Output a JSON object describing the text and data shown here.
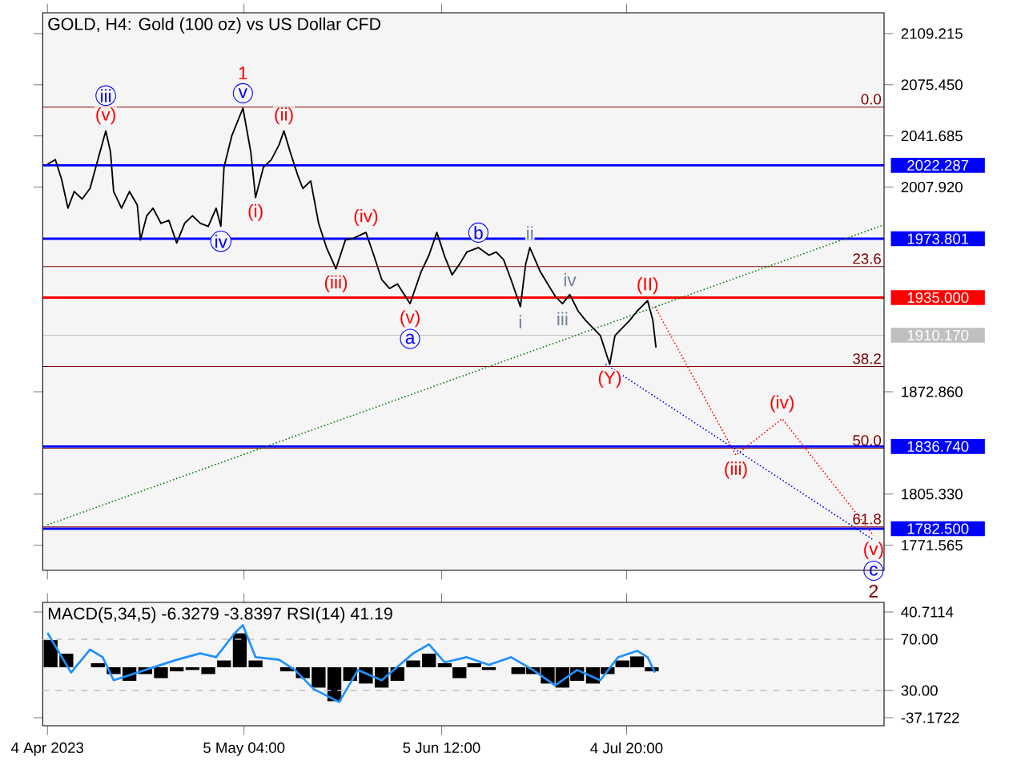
{
  "chart_data": [
    {
      "type": "line",
      "title": "GOLD, H4:  Gold (100 oz) vs US Dollar CFD",
      "xlim": [
        "2023-04-03T06:00",
        "2023-08-14T16:00"
      ],
      "ylim": [
        1755,
        2122.9
      ],
      "xticks": [
        {
          "value": "2023-04-04T00:00",
          "label": null
        },
        {
          "value": "2023-05-05T04:00",
          "label": null
        },
        {
          "value": "2023-06-05T12:00",
          "label": null
        },
        {
          "value": "2023-07-04T20:00",
          "label": null
        }
      ],
      "yticks": [
        {
          "value": 2109.215,
          "label": "2109.215"
        },
        {
          "value": 2075.45,
          "label": "2075.450"
        },
        {
          "value": 2041.685,
          "label": "2041.685"
        },
        {
          "value": 2007.92,
          "label": "2007.920"
        },
        {
          "value": 1872.86,
          "label": "1872.860"
        },
        {
          "value": 1805.33,
          "label": "1805.330"
        },
        {
          "value": 1771.565,
          "label": "1771.565"
        }
      ],
      "tick_labels": "y",
      "marker": "none",
      "series": [
        {
          "color": "#000000",
          "line_style": "solid",
          "x": [
            "2023-04-04T00:00",
            "2023-04-05T06:00",
            "2023-04-06T06:00",
            "2023-04-07T06:00",
            "2023-04-08T06:00",
            "2023-04-09T12:00",
            "2023-04-10T18:00",
            "2023-04-12T00:00",
            "2023-04-13T06:00",
            "2023-04-14T00:00",
            "2023-04-14T12:00",
            "2023-04-15T18:00",
            "2023-04-17T00:00",
            "2023-04-18T06:00",
            "2023-04-18T18:00",
            "2023-04-19T18:00",
            "2023-04-20T18:00",
            "2023-04-22T00:00",
            "2023-04-23T06:00",
            "2023-04-24T12:00",
            "2023-04-25T18:00",
            "2023-04-27T00:00",
            "2023-04-28T06:00",
            "2023-04-29T12:00",
            "2023-04-30T18:00",
            "2023-05-01T12:00",
            "2023-05-02T00:00",
            "2023-05-03T06:00",
            "2023-05-05T00:00",
            "2023-05-06T06:00",
            "2023-05-07T00:00",
            "2023-05-08T06:00",
            "2023-05-09T12:00",
            "2023-05-10T18:00",
            "2023-05-11T12:00",
            "2023-05-12T12:00",
            "2023-05-13T18:00",
            "2023-05-14T12:00",
            "2023-05-15T18:00",
            "2023-05-17T00:00",
            "2023-05-18T06:00",
            "2023-05-19T18:00",
            "2023-05-21T06:00",
            "2023-05-22T12:00",
            "2023-05-24T12:00",
            "2023-05-25T18:00",
            "2023-05-27T00:00",
            "2023-05-28T06:00",
            "2023-05-29T12:00",
            "2023-05-31T12:00",
            "2023-06-02T06:00",
            "2023-06-03T12:00",
            "2023-06-04T18:00",
            "2023-06-06T00:00",
            "2023-06-07T04:00",
            "2023-06-08T08:00",
            "2023-06-09T12:00",
            "2023-06-11T08:00",
            "2023-06-13T00:00",
            "2023-06-14T04:00",
            "2023-06-15T08:00",
            "2023-06-16T12:00",
            "2023-06-18T00:00",
            "2023-06-18T20:00",
            "2023-06-19T12:00",
            "2023-06-21T04:00",
            "2023-06-22T08:00",
            "2023-06-23T12:00",
            "2023-06-24T16:00",
            "2023-06-25T20:00",
            "2023-06-27T04:00",
            "2023-06-28T08:00",
            "2023-06-29T12:00",
            "2023-06-30T16:00",
            "2023-07-02T04:00",
            "2023-07-03T00:00",
            "2023-07-04T04:00",
            "2023-07-05T08:00",
            "2023-07-06T12:00",
            "2023-07-08T04:00",
            "2023-07-09T00:00",
            "2023-07-09T12:00"
          ],
          "values": [
            2023,
            2026,
            2013,
            1994,
            2005,
            2000,
            2007,
            2026,
            2045,
            2031,
            2005,
            1994,
            2005,
            1996,
            1973,
            1989,
            1994,
            1984,
            1986,
            1971,
            1984,
            1989,
            1984,
            1982,
            1994,
            1982,
            2021,
            2042,
            2060,
            2031,
            2001,
            2021,
            2026,
            2036,
            2045,
            2031,
            2015,
            2007,
            2012,
            1984,
            1968,
            1954,
            1973,
            1974,
            1978,
            1963,
            1947,
            1941,
            1944,
            1931,
            1952,
            1963,
            1978,
            1962,
            1950,
            1957,
            1965,
            1968,
            1963,
            1965,
            1960,
            1947,
            1929,
            1957,
            1968,
            1952,
            1944,
            1936,
            1931,
            1937,
            1926,
            1920,
            1915,
            1910,
            1891,
            1910,
            1915,
            1920,
            1926,
            1933,
            1920,
            1902
          ]
        },
        {
          "type": "line",
          "color": "#008000",
          "line_style": "dotted",
          "x": [
            "2023-04-04T00:00",
            "2023-08-14T16:00"
          ],
          "values": [
            1785,
            1983
          ]
        },
        {
          "type": "line",
          "color": "#ff0000",
          "line_style": "dotted",
          "x": [
            "2023-07-09T08:00",
            "2023-07-22T04:00",
            "2023-07-29T12:00",
            "2023-08-13T00:00"
          ],
          "values": [
            1929,
            1831,
            1855,
            1778
          ]
        },
        {
          "type": "line",
          "color": "#0000ff",
          "line_style": "dotted",
          "x": [
            "2023-07-01T12:00",
            "2023-08-13T00:00"
          ],
          "values": [
            1891,
            1775
          ]
        }
      ],
      "ref_lines": [
        {
          "axis": "y",
          "value": 2060.7,
          "color": "#800000"
        },
        {
          "axis": "y",
          "value": 1955.5,
          "color": "#800000"
        },
        {
          "axis": "y",
          "value": 1889.5,
          "color": "#800000"
        },
        {
          "axis": "y",
          "value": 1835.6,
          "color": "#800000"
        },
        {
          "axis": "y",
          "value": 1783.7,
          "color": "#800000"
        },
        {
          "axis": "y",
          "value": 2022.287,
          "label": "2022.287",
          "color": "#0000ff"
        },
        {
          "axis": "y",
          "value": 1973.801,
          "label": "1973.801",
          "color": "#0000ff"
        },
        {
          "axis": "y",
          "value": 1935.0,
          "label": "1935.000",
          "color": "#ff0000"
        },
        {
          "axis": "y",
          "value": 1910.17,
          "label": "1910.170",
          "color": "#c0c0c0"
        },
        {
          "axis": "y",
          "value": 1836.74,
          "label": "1836.740",
          "color": "#0000ff"
        },
        {
          "axis": "y",
          "value": 1782.5,
          "label": "1782.500",
          "color": "#0000ff"
        }
      ],
      "annotations": [
        "0.0",
        "23.6",
        "38.2",
        "50.0",
        "61.8",
        {
          "text": "v",
          "x": "2023-05-05T00:00",
          "y": 2060
        },
        {
          "text": "1",
          "x": "2023-05-05T00:00",
          "y": 2060
        },
        {
          "text": "(v)",
          "x": "2023-04-13T06:00",
          "y": 2045
        },
        {
          "text": "iii",
          "x": "2023-04-13T06:00",
          "y": 2045
        },
        {
          "text": "(ii)",
          "x": "2023-05-11T12:00",
          "y": 2045
        },
        {
          "text": "(i)",
          "x": "2023-05-07T00:00",
          "y": 2001
        },
        {
          "text": "iv",
          "x": "2023-05-01T12:00",
          "y": 1982
        },
        {
          "text": "(iv)",
          "x": "2023-05-24T12:00",
          "y": 1978
        },
        {
          "text": "(iii)",
          "x": "2023-05-19T18:00",
          "y": 1954
        },
        {
          "text": "(v)",
          "x": "2023-05-31T12:00",
          "y": 1931
        },
        {
          "text": "a",
          "x": "2023-05-31T12:00",
          "y": 1931
        },
        {
          "text": "b",
          "x": "2023-06-11T08:00",
          "y": 1968
        },
        {
          "text": "ii",
          "x": "2023-06-19T12:00",
          "y": 1968
        },
        {
          "text": "iv",
          "x": "2023-06-25T20:00",
          "y": 1937
        },
        {
          "text": "i",
          "x": "2023-06-18T00:00",
          "y": 1929
        },
        {
          "text": "iii",
          "x": "2023-06-24T16:00",
          "y": 1931
        },
        {
          "text": "(Y)",
          "x": "2023-07-02T04:00",
          "y": 1891
        },
        {
          "text": "(II)",
          "x": "2023-07-08T04:00",
          "y": 1933
        },
        {
          "text": "(iii)",
          "x": "2023-07-22T04:00",
          "y": 1831
        },
        {
          "text": "(iv)",
          "x": "2023-07-29T12:00",
          "y": 1855
        },
        {
          "text": "(v)",
          "x": "2023-08-13T00:00",
          "y": 1778
        },
        {
          "text": "c",
          "x": "2023-08-13T00:00",
          "y": 1778
        },
        {
          "text": "2",
          "x": "2023-08-13T00:00",
          "y": 1778
        }
      ]
    },
    {
      "type": "bar",
      "title": "MACD(5,34,5) -6.3279 -3.8397 RSI(14) 41.19",
      "xlim": [
        "2023-04-03T06:00",
        "2023-08-14T16:00"
      ],
      "ylim": [
        -43.1,
        47.8
      ],
      "y2lim": [
        2.5,
        98.75
      ],
      "xticks": [
        {
          "value": "2023-04-04T00:00",
          "label": "4 Apr 2023"
        },
        {
          "value": "2023-05-05T04:00",
          "label": "5 May 04:00"
        },
        {
          "value": "2023-06-05T12:00",
          "label": "5 Jun 12:00"
        },
        {
          "value": "2023-07-04T20:00",
          "label": "4 Jul 20:00"
        }
      ],
      "yticks": [
        {
          "value": 40.7114,
          "label": "40.7114"
        },
        {
          "value": -37.1722,
          "label": "-37.1722"
        }
      ],
      "y2ticks": [
        {
          "value": 70,
          "label": "70.00"
        },
        {
          "value": 30,
          "label": "30.00"
        }
      ],
      "series": [
        {
          "type": "bar",
          "color": "#000000",
          "x": [
            "2023-04-04T12:00",
            "2023-04-07T00:00",
            "2023-04-09T12:00",
            "2023-04-12T00:00",
            "2023-04-14T12:00",
            "2023-04-17T00:00",
            "2023-04-19T12:00",
            "2023-04-22T00:00",
            "2023-04-24T12:00",
            "2023-04-27T00:00",
            "2023-04-29T12:00",
            "2023-05-02T00:00",
            "2023-05-04T12:00",
            "2023-05-07T00:00",
            "2023-05-09T12:00",
            "2023-05-12T00:00",
            "2023-05-14T12:00",
            "2023-05-17T00:00",
            "2023-05-19T12:00",
            "2023-05-22T00:00",
            "2023-05-24T12:00",
            "2023-05-27T00:00",
            "2023-05-29T12:00",
            "2023-06-01T00:00",
            "2023-06-03T12:00",
            "2023-06-06T00:00",
            "2023-06-08T08:00",
            "2023-06-10T16:00",
            "2023-06-13T00:00",
            "2023-06-15T08:00",
            "2023-06-17T16:00",
            "2023-06-20T00:00",
            "2023-06-22T08:00",
            "2023-06-24T16:00",
            "2023-06-27T00:00",
            "2023-06-29T12:00",
            "2023-07-01T20:00",
            "2023-07-04T04:00",
            "2023-07-06T12:00",
            "2023-07-08T20:00"
          ],
          "values": [
            20,
            10,
            0,
            3,
            -5,
            -10,
            -5,
            -8,
            -3,
            -2,
            -5,
            5,
            25,
            5,
            0,
            -3,
            -8,
            -15,
            -25,
            -10,
            -12,
            -15,
            -10,
            5,
            10,
            3,
            -8,
            3,
            -2,
            0,
            -5,
            -5,
            -12,
            -15,
            -10,
            -12,
            -5,
            5,
            8,
            -3
          ]
        },
        {
          "type": "line",
          "axis": "y2",
          "color": "#1e90ff",
          "line_style": "solid",
          "x": [
            "2023-04-04T00:00",
            "2023-04-07T18:00",
            "2023-04-10T18:00",
            "2023-04-12T18:00",
            "2023-04-14T12:00",
            "2023-04-18T06:00",
            "2023-04-24T12:00",
            "2023-04-28T06:00",
            "2023-04-30T18:00",
            "2023-05-03T18:00",
            "2023-05-05T00:00",
            "2023-05-07T00:00",
            "2023-05-10T18:00",
            "2023-05-13T06:00",
            "2023-05-16T06:00",
            "2023-05-20T06:00",
            "2023-05-23T06:00",
            "2023-05-27T00:00",
            "2023-06-01T00:00",
            "2023-06-03T12:00",
            "2023-06-06T00:00",
            "2023-06-09T12:00",
            "2023-06-13T00:00",
            "2023-06-16T12:00",
            "2023-06-20T00:00",
            "2023-06-23T12:00",
            "2023-06-27T00:00",
            "2023-06-30T16:00",
            "2023-07-03T12:00",
            "2023-07-06T12:00",
            "2023-07-08T04:00",
            "2023-07-09T08:00"
          ],
          "values": [
            75,
            44,
            62,
            56,
            38,
            44,
            54,
            59,
            56,
            75,
            81,
            56,
            54,
            46,
            31,
            21,
            46,
            38,
            59,
            66,
            52,
            56,
            50,
            56,
            46,
            34,
            46,
            38,
            56,
            61,
            56,
            44
          ]
        }
      ],
      "ref_lines": [
        {
          "axis": "y2",
          "value": 70,
          "color": "#c0c0c0",
          "line_style": "dashed"
        },
        {
          "axis": "y2",
          "value": 30,
          "color": "#c0c0c0",
          "line_style": "dashed"
        }
      ]
    }
  ]
}
